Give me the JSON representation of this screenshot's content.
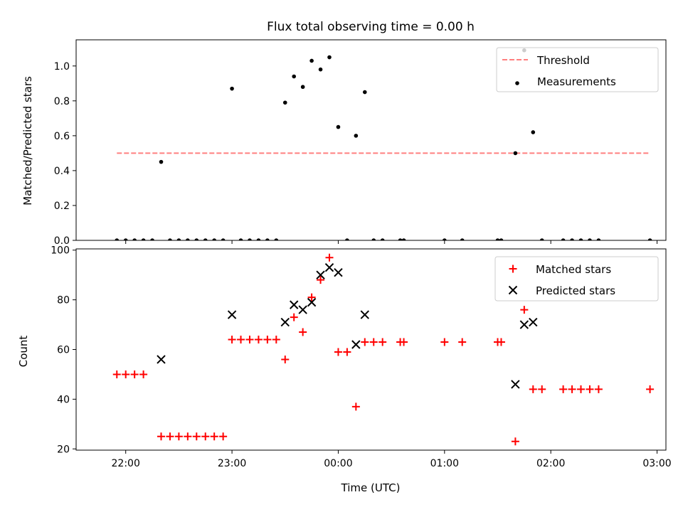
{
  "chart_data": [
    {
      "type": "scatter",
      "title": "Flux total observing time = 0.00 h",
      "xlabel": "",
      "ylabel": "Matched/Predicted stars",
      "xlim": [
        -28,
        305
      ],
      "ylim": [
        0,
        1.15
      ],
      "x_ticks": [
        {
          "value": 0,
          "label": ""
        },
        {
          "value": 60,
          "label": ""
        },
        {
          "value": 120,
          "label": ""
        },
        {
          "value": 180,
          "label": ""
        },
        {
          "value": 240,
          "label": ""
        },
        {
          "value": 300,
          "label": ""
        }
      ],
      "y_ticks": [
        {
          "value": 0,
          "label": "0.0"
        },
        {
          "value": 0.2,
          "label": "0.2"
        },
        {
          "value": 0.4,
          "label": "0.4"
        },
        {
          "value": 0.6,
          "label": "0.6"
        },
        {
          "value": 0.8,
          "label": "0.8"
        },
        {
          "value": 1.0,
          "label": "1.0"
        }
      ],
      "legend_position": "top-right",
      "legend": [
        {
          "label": "Threshold",
          "color": "#ff7f7f",
          "marker": "dash-line"
        },
        {
          "label": "Measurements",
          "color": "#000000",
          "marker": "dot"
        }
      ],
      "threshold": {
        "name": "Threshold",
        "value": 0.5,
        "x_range": [
          -5,
          296
        ],
        "color": "#ff7f7f"
      },
      "series": [
        {
          "name": "Measurements",
          "color": "#000000",
          "marker": "dot",
          "points": [
            [
              -5,
              0
            ],
            [
              0,
              0
            ],
            [
              5,
              0
            ],
            [
              10,
              0
            ],
            [
              15,
              0
            ],
            [
              20,
              0.45
            ],
            [
              25,
              0
            ],
            [
              30,
              0
            ],
            [
              35,
              0
            ],
            [
              40,
              0
            ],
            [
              45,
              0
            ],
            [
              50,
              0
            ],
            [
              55,
              0
            ],
            [
              60,
              0.87
            ],
            [
              65,
              0
            ],
            [
              70,
              0
            ],
            [
              75,
              0
            ],
            [
              80,
              0
            ],
            [
              85,
              0
            ],
            [
              90,
              0.79
            ],
            [
              95,
              0.94
            ],
            [
              100,
              0.88
            ],
            [
              105,
              1.03
            ],
            [
              110,
              0.98
            ],
            [
              115,
              1.05
            ],
            [
              120,
              0.65
            ],
            [
              125,
              0
            ],
            [
              130,
              0.6
            ],
            [
              135,
              0.85
            ],
            [
              140,
              0
            ],
            [
              145,
              0
            ],
            [
              155,
              0
            ],
            [
              157,
              0
            ],
            [
              180,
              0
            ],
            [
              190,
              0
            ],
            [
              210,
              0
            ],
            [
              212,
              0
            ],
            [
              220,
              0.5
            ],
            [
              225,
              1.09
            ],
            [
              230,
              0.62
            ],
            [
              235,
              0
            ],
            [
              247,
              0
            ],
            [
              252,
              0
            ],
            [
              257,
              0
            ],
            [
              262,
              0
            ],
            [
              267,
              0
            ],
            [
              296,
              0
            ]
          ]
        }
      ]
    },
    {
      "type": "scatter",
      "title": "",
      "xlabel": "Time (UTC)",
      "ylabel": "Count",
      "xlim": [
        -28,
        305
      ],
      "ylim": [
        19.5,
        100.5
      ],
      "x_ticks": [
        {
          "value": 0,
          "label": "22:00"
        },
        {
          "value": 60,
          "label": "23:00"
        },
        {
          "value": 120,
          "label": "00:00"
        },
        {
          "value": 180,
          "label": "01:00"
        },
        {
          "value": 240,
          "label": "02:00"
        },
        {
          "value": 300,
          "label": "03:00"
        }
      ],
      "y_ticks": [
        {
          "value": 20,
          "label": "20"
        },
        {
          "value": 40,
          "label": "40"
        },
        {
          "value": 60,
          "label": "60"
        },
        {
          "value": 80,
          "label": "80"
        },
        {
          "value": 100,
          "label": "100"
        }
      ],
      "legend_position": "top-right",
      "legend": [
        {
          "label": "Matched stars",
          "color": "#ff0000",
          "marker": "plus"
        },
        {
          "label": "Predicted stars",
          "color": "#000000",
          "marker": "cross"
        }
      ],
      "series": [
        {
          "name": "Matched stars",
          "color": "#ff0000",
          "marker": "plus",
          "points": [
            [
              -5,
              50
            ],
            [
              0,
              50
            ],
            [
              5,
              50
            ],
            [
              10,
              50
            ],
            [
              20,
              25
            ],
            [
              25,
              25
            ],
            [
              30,
              25
            ],
            [
              35,
              25
            ],
            [
              40,
              25
            ],
            [
              45,
              25
            ],
            [
              50,
              25
            ],
            [
              55,
              25
            ],
            [
              60,
              64
            ],
            [
              65,
              64
            ],
            [
              70,
              64
            ],
            [
              75,
              64
            ],
            [
              80,
              64
            ],
            [
              85,
              64
            ],
            [
              90,
              56
            ],
            [
              95,
              73
            ],
            [
              100,
              67
            ],
            [
              105,
              81
            ],
            [
              110,
              88
            ],
            [
              115,
              97
            ],
            [
              120,
              59
            ],
            [
              125,
              59
            ],
            [
              130,
              37
            ],
            [
              135,
              63
            ],
            [
              140,
              63
            ],
            [
              145,
              63
            ],
            [
              155,
              63
            ],
            [
              157,
              63
            ],
            [
              180,
              63
            ],
            [
              190,
              63
            ],
            [
              210,
              63
            ],
            [
              212,
              63
            ],
            [
              220,
              23
            ],
            [
              225,
              76
            ],
            [
              230,
              44
            ],
            [
              235,
              44
            ],
            [
              247,
              44
            ],
            [
              252,
              44
            ],
            [
              257,
              44
            ],
            [
              262,
              44
            ],
            [
              267,
              44
            ],
            [
              296,
              44
            ]
          ]
        },
        {
          "name": "Predicted stars",
          "color": "#000000",
          "marker": "cross",
          "points": [
            [
              20,
              56
            ],
            [
              60,
              74
            ],
            [
              90,
              71
            ],
            [
              95,
              78
            ],
            [
              100,
              76
            ],
            [
              105,
              79
            ],
            [
              110,
              90
            ],
            [
              115,
              93
            ],
            [
              120,
              91
            ],
            [
              130,
              62
            ],
            [
              135,
              74
            ],
            [
              220,
              46
            ],
            [
              225,
              70
            ],
            [
              230,
              71
            ]
          ]
        }
      ]
    }
  ]
}
